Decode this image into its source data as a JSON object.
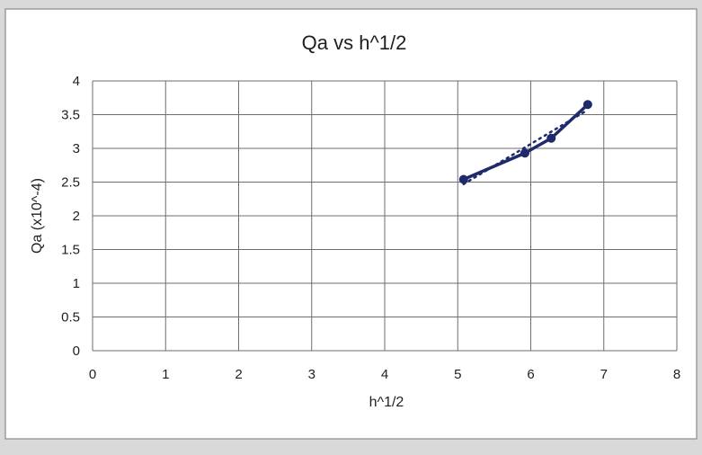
{
  "chart_data": {
    "type": "line",
    "title": "Qa vs h^1/2",
    "xlabel": "h^1/2",
    "ylabel": "Qa (x10^-4)",
    "xlim": [
      0,
      8
    ],
    "ylim": [
      0,
      4
    ],
    "x_ticks": [
      "0",
      "1",
      "2",
      "3",
      "4",
      "5",
      "6",
      "7",
      "8"
    ],
    "y_ticks": [
      "0",
      "0.5",
      "1",
      "1.5",
      "2",
      "2.5",
      "3",
      "3.5",
      "4"
    ],
    "x_tick_values": [
      0,
      1,
      2,
      3,
      4,
      5,
      6,
      7,
      8
    ],
    "y_tick_values": [
      0,
      0.5,
      1,
      1.5,
      2,
      2.5,
      3,
      3.5,
      4
    ],
    "grid": true,
    "legend": "none",
    "series": [
      {
        "x": [
          5.08,
          5.92,
          6.28,
          6.78
        ],
        "y": [
          2.54,
          2.93,
          3.15,
          3.65
        ],
        "color": "#1f2a6b",
        "marker": "circle",
        "trendline": {
          "style": "dotted",
          "color": "#1f2a6b",
          "x": [
            5.08,
            6.78
          ],
          "y": [
            2.47,
            3.57
          ]
        }
      }
    ]
  }
}
